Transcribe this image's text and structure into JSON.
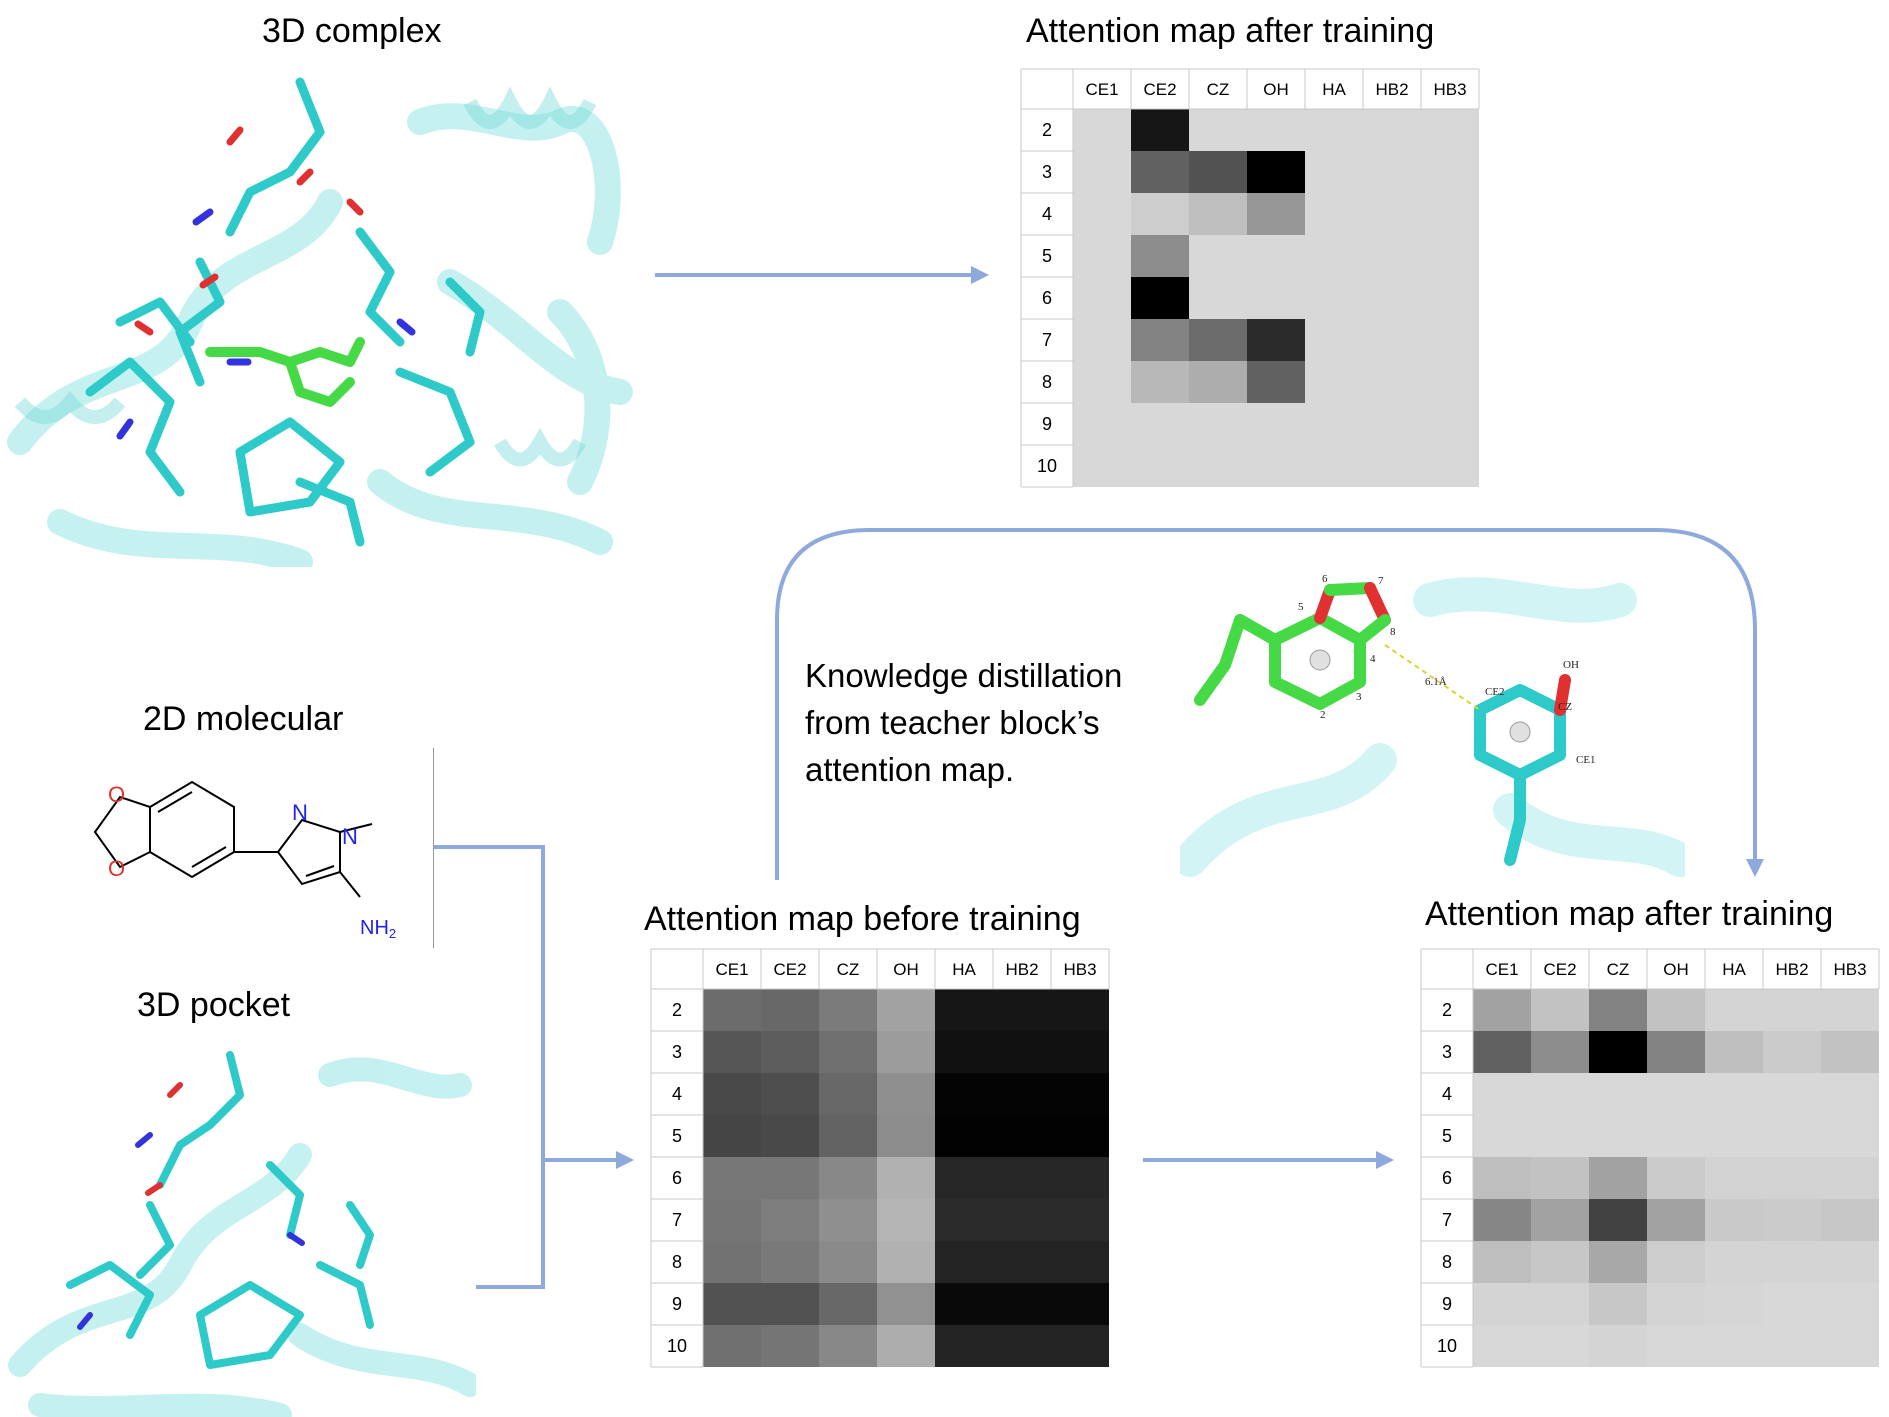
{
  "labels": {
    "complex_3d": "3D complex",
    "molecular_2d": "2D molecular",
    "pocket_3d": "3D pocket",
    "kd_line1": "Knowledge distillation",
    "kd_line2": "from teacher block’s",
    "kd_line3": "attention map."
  },
  "molecule": {
    "N1": "N",
    "N2": "N",
    "NH2": "NH",
    "NH2_sub": "2",
    "O1": "O",
    "O2": "O"
  },
  "inset_labels": {
    "a6": "6",
    "a7": "7",
    "a5": "5",
    "a8": "8",
    "a4": "4",
    "a3": "3",
    "a2": "2",
    "dist": "6.1Å",
    "ce2": "CE2",
    "cz": "CZ",
    "ce1": "CE1",
    "oh": "OH"
  },
  "colors": {
    "arrow": "#8EA9DB",
    "protein": "#7fe0e0",
    "carbon_cyan": "#2ec9c9",
    "ligand_green": "#46d946",
    "oxygen": "#e03030",
    "nitrogen": "#3333dd",
    "grid_line": "#c8c8c8"
  },
  "chart_data": [
    {
      "type": "heatmap",
      "title": "Attention map after training",
      "columns": [
        "CE1",
        "CE2",
        "CZ",
        "OH",
        "HA",
        "HB2",
        "HB3"
      ],
      "rows": [
        "2",
        "3",
        "4",
        "5",
        "6",
        "7",
        "8",
        "9",
        "10"
      ],
      "values": [
        [
          0.0,
          0.9,
          0.0,
          0.0,
          0.0,
          0.0,
          0.0
        ],
        [
          0.0,
          0.55,
          0.62,
          1.0,
          0.0,
          0.0,
          0.0
        ],
        [
          0.0,
          0.05,
          0.12,
          0.3,
          0.0,
          0.0,
          0.0
        ],
        [
          0.0,
          0.35,
          0.0,
          0.0,
          0.0,
          0.0,
          0.0
        ],
        [
          0.0,
          1.0,
          0.0,
          0.0,
          0.0,
          0.0,
          0.0
        ],
        [
          0.0,
          0.4,
          0.5,
          0.8,
          0.0,
          0.0,
          0.0
        ],
        [
          0.0,
          0.15,
          0.2,
          0.55,
          0.0,
          0.0,
          0.0
        ],
        [
          0.0,
          0.0,
          0.0,
          0.0,
          0.0,
          0.0,
          0.0
        ],
        [
          0.0,
          0.0,
          0.0,
          0.0,
          0.0,
          0.0,
          0.0
        ]
      ]
    },
    {
      "type": "heatmap",
      "title": "Attention map before training",
      "columns": [
        "CE1",
        "CE2",
        "CZ",
        "OH",
        "HA",
        "HB2",
        "HB3"
      ],
      "rows": [
        "2",
        "3",
        "4",
        "5",
        "6",
        "7",
        "8",
        "9",
        "10"
      ],
      "values": [
        [
          0.5,
          0.52,
          0.43,
          0.25,
          0.9,
          0.9,
          0.9
        ],
        [
          0.6,
          0.57,
          0.48,
          0.28,
          0.92,
          0.92,
          0.92
        ],
        [
          0.66,
          0.64,
          0.52,
          0.34,
          0.98,
          0.98,
          0.98
        ],
        [
          0.68,
          0.66,
          0.54,
          0.35,
          0.99,
          0.99,
          0.99
        ],
        [
          0.45,
          0.45,
          0.37,
          0.18,
          0.82,
          0.82,
          0.82
        ],
        [
          0.46,
          0.42,
          0.34,
          0.16,
          0.8,
          0.8,
          0.8
        ],
        [
          0.47,
          0.44,
          0.36,
          0.18,
          0.84,
          0.84,
          0.84
        ],
        [
          0.62,
          0.62,
          0.52,
          0.33,
          0.96,
          0.96,
          0.96
        ],
        [
          0.48,
          0.46,
          0.37,
          0.2,
          0.84,
          0.84,
          0.84
        ]
      ]
    },
    {
      "type": "heatmap",
      "title": "Attention map after training",
      "columns": [
        "CE1",
        "CE2",
        "CZ",
        "OH",
        "HA",
        "HB2",
        "HB3"
      ],
      "rows": [
        "2",
        "3",
        "4",
        "5",
        "6",
        "7",
        "8",
        "9",
        "10"
      ],
      "values": [
        [
          0.25,
          0.1,
          0.4,
          0.1,
          0.02,
          0.02,
          0.02
        ],
        [
          0.55,
          0.35,
          1.0,
          0.4,
          0.12,
          0.06,
          0.1
        ],
        [
          0.0,
          0.0,
          0.0,
          0.0,
          0.0,
          0.0,
          0.0
        ],
        [
          0.0,
          0.0,
          0.0,
          0.0,
          0.0,
          0.0,
          0.0
        ],
        [
          0.12,
          0.1,
          0.25,
          0.06,
          0.03,
          0.03,
          0.03
        ],
        [
          0.38,
          0.25,
          0.7,
          0.25,
          0.07,
          0.06,
          0.08
        ],
        [
          0.12,
          0.08,
          0.22,
          0.05,
          0.02,
          0.02,
          0.02
        ],
        [
          0.02,
          0.02,
          0.08,
          0.02,
          0.01,
          0.0,
          0.0
        ],
        [
          0.0,
          0.0,
          0.02,
          0.0,
          0.0,
          0.0,
          0.0
        ]
      ]
    }
  ]
}
